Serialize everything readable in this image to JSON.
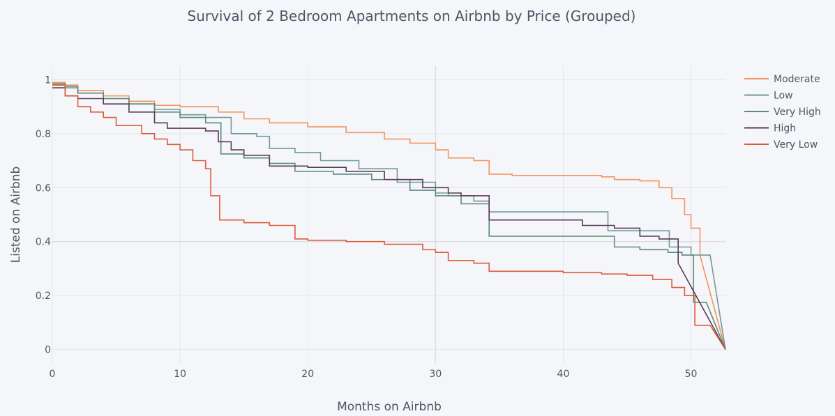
{
  "chart_data": {
    "type": "line",
    "title": "Survival of 2 Bedroom Apartments on Airbnb by Price (Grouped)",
    "xlabel": "Months on Airbnb",
    "ylabel": "Listed on Airbnb",
    "xlim": [
      0,
      52.7
    ],
    "ylim": [
      -0.05,
      1.05
    ],
    "x_ticks": [
      0,
      10,
      20,
      30,
      40,
      50
    ],
    "x_tick_labels": [
      "0",
      "10",
      "20",
      "30",
      "40",
      "50"
    ],
    "y_ticks": [
      0,
      0.2,
      0.4,
      0.6,
      0.8,
      1
    ],
    "y_tick_labels": [
      "0",
      "0.2",
      "0.4",
      "0.6",
      "0.8",
      "1"
    ],
    "grid": true,
    "legend_position": "top-right",
    "series": [
      {
        "name": "Moderate",
        "color": "#f4935c",
        "x": [
          0,
          1,
          2,
          4,
          6,
          8,
          10,
          13,
          15,
          17,
          20,
          23,
          26,
          28,
          30,
          31,
          33,
          34.2,
          36,
          40,
          43,
          44,
          46,
          47.5,
          48.5,
          49.5,
          50,
          50.7,
          52.7
        ],
        "y": [
          0.99,
          0.98,
          0.96,
          0.94,
          0.92,
          0.905,
          0.9,
          0.88,
          0.855,
          0.84,
          0.825,
          0.805,
          0.78,
          0.765,
          0.74,
          0.71,
          0.7,
          0.65,
          0.645,
          0.645,
          0.64,
          0.63,
          0.625,
          0.6,
          0.56,
          0.5,
          0.45,
          0.35,
          0
        ]
      },
      {
        "name": "Low",
        "color": "#6f9a9a",
        "x": [
          0,
          1,
          2,
          4,
          6,
          8,
          10,
          12,
          14,
          16,
          17,
          19,
          21,
          24,
          27,
          30,
          31,
          33,
          34.2,
          40,
          43.5,
          44.5,
          47,
          48.3,
          50,
          51.5,
          52.7
        ],
        "y": [
          0.98,
          0.97,
          0.95,
          0.93,
          0.91,
          0.89,
          0.87,
          0.86,
          0.8,
          0.79,
          0.745,
          0.73,
          0.7,
          0.67,
          0.62,
          0.58,
          0.57,
          0.55,
          0.51,
          0.51,
          0.44,
          0.44,
          0.44,
          0.38,
          0.35,
          0.35,
          0
        ]
      },
      {
        "name": "Very High",
        "color": "#5c8a7b",
        "x": [
          0,
          1,
          2,
          4,
          6,
          8,
          10,
          12,
          13.2,
          15,
          17,
          19,
          22,
          25,
          28,
          30,
          32,
          34.2,
          40,
          44,
          46,
          48.2,
          49.3,
          50.2,
          51.2,
          52.7
        ],
        "y": [
          0.985,
          0.975,
          0.95,
          0.93,
          0.91,
          0.88,
          0.86,
          0.84,
          0.725,
          0.71,
          0.69,
          0.66,
          0.65,
          0.63,
          0.59,
          0.57,
          0.54,
          0.42,
          0.42,
          0.38,
          0.37,
          0.36,
          0.35,
          0.175,
          0.175,
          0
        ]
      },
      {
        "name": "High",
        "color": "#5a3a55",
        "x": [
          0,
          1,
          2,
          4,
          6,
          8,
          9,
          12,
          13,
          14,
          15,
          17,
          20,
          23,
          26,
          29,
          31,
          32,
          34.2,
          40,
          41.5,
          44,
          46,
          47.5,
          49,
          52.7
        ],
        "y": [
          0.97,
          0.94,
          0.93,
          0.91,
          0.88,
          0.84,
          0.82,
          0.81,
          0.77,
          0.74,
          0.72,
          0.68,
          0.675,
          0.66,
          0.63,
          0.6,
          0.58,
          0.57,
          0.48,
          0.48,
          0.46,
          0.45,
          0.42,
          0.41,
          0.32,
          0
        ]
      },
      {
        "name": "Very Low",
        "color": "#dd5b3c",
        "x": [
          0,
          1,
          2,
          3,
          4,
          5,
          7,
          8,
          9,
          10,
          11,
          12,
          12.4,
          13.1,
          14,
          15,
          17,
          19,
          20,
          23,
          26,
          29,
          30,
          31,
          33,
          34.2,
          40,
          43,
          45,
          47,
          48.5,
          49.5,
          50.3,
          51.5,
          52.7
        ],
        "y": [
          0.98,
          0.94,
          0.9,
          0.88,
          0.86,
          0.83,
          0.8,
          0.78,
          0.76,
          0.74,
          0.7,
          0.67,
          0.57,
          0.48,
          0.48,
          0.47,
          0.46,
          0.41,
          0.405,
          0.4,
          0.39,
          0.37,
          0.36,
          0.33,
          0.32,
          0.29,
          0.285,
          0.28,
          0.275,
          0.26,
          0.23,
          0.2,
          0.09,
          0.09,
          0
        ]
      }
    ]
  }
}
